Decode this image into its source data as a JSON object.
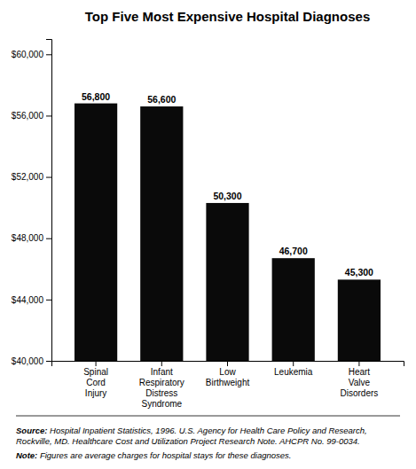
{
  "chart_data": {
    "type": "bar",
    "title": "Top Five Most Expensive Hospital Diagnoses",
    "categories": [
      "Spinal\nCord\nInjury",
      "Infant\nRespiratory\nDistress\nSyndrome",
      "Low\nBirthweight",
      "Leukemia",
      "Heart\nValve\nDisorders"
    ],
    "values": [
      56800,
      56600,
      50300,
      46700,
      45300
    ],
    "value_labels": [
      "56,800",
      "56,600",
      "50,300",
      "46,700",
      "45,300"
    ],
    "data_labels": true,
    "color": "#0a0a0a",
    "ylim": [
      40000,
      61000
    ],
    "yticks": [
      {
        "value": 40000,
        "label": "$40,000"
      },
      {
        "value": 44000,
        "label": "$44,000"
      },
      {
        "value": 48000,
        "label": "$48,000"
      },
      {
        "value": 52000,
        "label": "$52,000"
      },
      {
        "value": 56000,
        "label": "$56,000"
      },
      {
        "value": 60000,
        "label": "$60,000"
      }
    ],
    "grid": false,
    "annotations": [
      "Source: Hospital Inpatient Statistics, 1996. U.S. Agency for Health Care Policy and Research, Rockville, MD. Healthcare Cost and Utilization Project Research Note. AHCPR No. 99-0034.",
      "Note: Figures are average charges for hospital stays for these diagnoses."
    ]
  }
}
